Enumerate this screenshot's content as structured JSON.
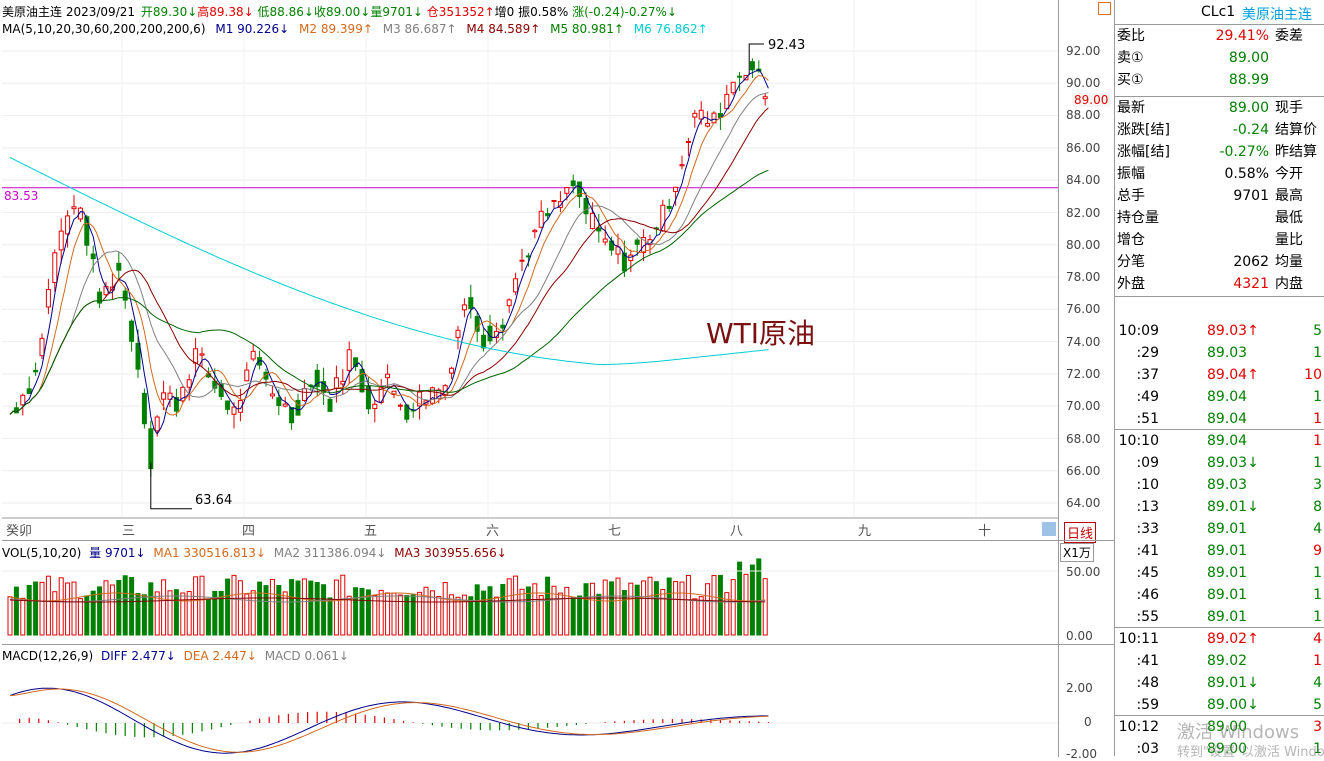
{
  "header": {
    "symbol": "美原油主连",
    "date": "2023/09/21",
    "open": "开89.30↓",
    "high": "高89.38↓",
    "low": "低88.86↓",
    "close": "收89.00↓",
    "volume": "量9701↓",
    "oi": "仓351352↑",
    "oi_change": "增0",
    "amplitude": "振0.58%",
    "change": "涨(-0.24)-0.27%↓"
  },
  "ma_line": {
    "label": "MA(5,10,20,30,60,200,200,200,6)",
    "m1": "M1 90.226↓",
    "m2": "M2 89.399↑",
    "m3": "M3 86.687↑",
    "m4": "M4 84.589↑",
    "m5": "M5 80.981↑",
    "m6": "M6 76.862↑"
  },
  "colors": {
    "m1": "#00008b",
    "m2": "#d2691e",
    "m3": "#808080",
    "m4": "#8b0000",
    "m5": "#006400",
    "m6": "#00ced1",
    "hline": "#cc00cc",
    "up": "#e00000",
    "down": "#008000"
  },
  "annotations": {
    "high": "92.43",
    "low": "63.64",
    "hline": "83.53",
    "current": "89.00",
    "watermark": "WTI原油"
  },
  "price_axis": [
    "92.00",
    "90.00",
    "88.00",
    "86.00",
    "84.00",
    "82.00",
    "80.00",
    "78.00",
    "76.00",
    "74.00",
    "72.00",
    "70.00",
    "68.00",
    "66.00",
    "64.00"
  ],
  "months": [
    "癸卯",
    "三",
    "四",
    "五",
    "六",
    "七",
    "八",
    "九",
    "十"
  ],
  "period_label": "日线",
  "vol_header": {
    "label": "VOL(5,10,20)",
    "vol": "量 9701↓",
    "ma1": "MA1 330516.813↓",
    "ma2": "MA2 311386.094↓",
    "ma3": "MA3 303955.656↓"
  },
  "vol_unit": "X1万",
  "vol_axis": [
    "50.00",
    "0.00"
  ],
  "macd_header": {
    "label": "MACD(12,26,9)",
    "diff": "DIFF 2.477↓",
    "dea": "DEA 2.447↓",
    "macd": "MACD 0.061↓"
  },
  "macd_axis": [
    "2.00",
    "0",
    "-2.00"
  ],
  "quote": {
    "code": "CLc1",
    "name": "美原油主连",
    "rows": [
      {
        "l": "委比",
        "m": "29.41%",
        "r": "委差",
        "c": "up"
      },
      {
        "l": "卖①",
        "m": "89.00",
        "r": "",
        "c": "dn"
      },
      {
        "l": "买①",
        "m": "88.99",
        "r": "",
        "c": "dn"
      },
      {
        "l": "最新",
        "m": "89.00",
        "r": "现手",
        "c": "dn"
      },
      {
        "l": "涨跌[结]",
        "m": "-0.24",
        "r": "结算价",
        "c": "dn"
      },
      {
        "l": "涨幅[结]",
        "m": "-0.27%",
        "r": "昨结算",
        "c": "dn"
      },
      {
        "l": "振幅",
        "m": "0.58%",
        "r": "今开",
        "c": ""
      },
      {
        "l": "总手",
        "m": "9701",
        "r": "最高",
        "c": ""
      },
      {
        "l": "持仓量",
        "m": "",
        "r": "最低",
        "c": ""
      },
      {
        "l": "增仓",
        "m": "",
        "r": "量比",
        "c": ""
      },
      {
        "l": "分笔",
        "m": "2062",
        "r": "均量",
        "c": ""
      },
      {
        "l": "外盘",
        "m": "4321",
        "r": "内盘",
        "c": "up"
      }
    ],
    "ticks": [
      {
        "t": "10:09",
        "p": "89.03↑",
        "v": "5",
        "pc": "up",
        "vc": "dn"
      },
      {
        "t": ":29",
        "p": "89.03",
        "v": "1",
        "pc": "",
        "vc": "dn"
      },
      {
        "t": ":37",
        "p": "89.04↑",
        "v": "10",
        "pc": "up",
        "vc": "up"
      },
      {
        "t": ":49",
        "p": "89.04",
        "v": "1",
        "pc": "",
        "vc": "dn"
      },
      {
        "t": ":51",
        "p": "89.04",
        "v": "1",
        "pc": "",
        "vc": "up"
      },
      {
        "t": "10:10",
        "p": "89.04",
        "v": "1",
        "pc": "",
        "vc": "up"
      },
      {
        "t": ":09",
        "p": "89.03↓",
        "v": "1",
        "pc": "dn",
        "vc": "dn"
      },
      {
        "t": ":10",
        "p": "89.03",
        "v": "3",
        "pc": "",
        "vc": "dn"
      },
      {
        "t": ":13",
        "p": "89.01↓",
        "v": "8",
        "pc": "dn",
        "vc": "dn"
      },
      {
        "t": ":33",
        "p": "89.01",
        "v": "4",
        "pc": "",
        "vc": "dn"
      },
      {
        "t": ":41",
        "p": "89.01",
        "v": "9",
        "pc": "",
        "vc": "up"
      },
      {
        "t": ":45",
        "p": "89.01",
        "v": "1",
        "pc": "",
        "vc": "dn"
      },
      {
        "t": ":46",
        "p": "89.01",
        "v": "1",
        "pc": "",
        "vc": "dn"
      },
      {
        "t": ":55",
        "p": "89.01",
        "v": "1",
        "pc": "",
        "vc": "dn"
      },
      {
        "t": "10:11",
        "p": "89.02↑",
        "v": "4",
        "pc": "up",
        "vc": "up"
      },
      {
        "t": ":41",
        "p": "89.02",
        "v": "1",
        "pc": "",
        "vc": "up"
      },
      {
        "t": ":48",
        "p": "89.01↓",
        "v": "4",
        "pc": "dn",
        "vc": "dn"
      },
      {
        "t": ":59",
        "p": "89.00↓",
        "v": "5",
        "pc": "dn",
        "vc": "dn"
      },
      {
        "t": "10:12",
        "p": "89.00",
        "v": "3",
        "pc": "",
        "vc": "up"
      },
      {
        "t": ":03",
        "p": "89.00",
        "v": "1",
        "pc": "",
        "vc": "dn"
      }
    ]
  },
  "watermark_os": {
    "line1": "激活 Windows",
    "line2": "转到\"设置\"以激活 Windows。"
  }
}
